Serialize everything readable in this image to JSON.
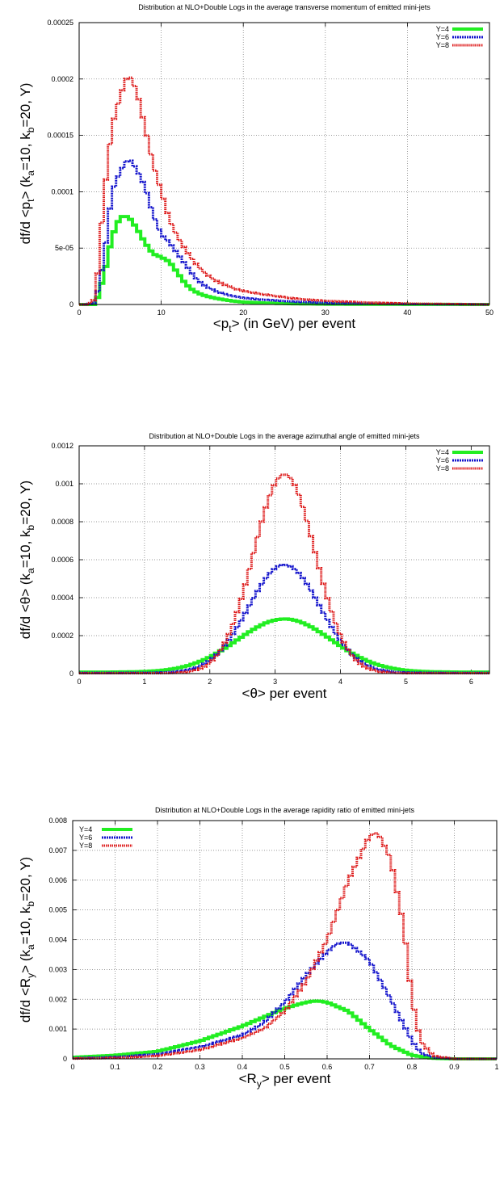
{
  "colors": {
    "Y=4": "#22ee22",
    "Y=6": "#1515cc",
    "Y=8": "#dd1818",
    "grid": "#777777"
  },
  "chart_data": [
    {
      "type": "line",
      "title": "Distribution at NLO+Double Logs in the average transverse momentum of emitted mini-jets",
      "xlabel_pre": "<p",
      "xlabel_sub": "t",
      "xlabel_post": "> (in GeV) per event",
      "ylabel": {
        "a": "df/d <p",
        "b": "t",
        "c": "> (k",
        "d": "a",
        "e": "=10, k",
        "f": "b",
        "g": "=20, Y)"
      },
      "xlim": [
        0,
        50
      ],
      "ylim": [
        0,
        0.00025
      ],
      "xticks": [
        "0",
        "10",
        "20",
        "30",
        "40",
        "50"
      ],
      "yticks": [
        "0",
        "5e-05",
        "0.0001",
        "0.00015",
        "0.0002",
        "0.00025"
      ],
      "grid": true,
      "legend_position": "top-right",
      "step": "histogram",
      "series": [
        {
          "name": "Y=4",
          "x": [
            0,
            1,
            2,
            3,
            4,
            5,
            6,
            7,
            8,
            9,
            10,
            11,
            12,
            13,
            14,
            15,
            16,
            17,
            18,
            19,
            20,
            22,
            24,
            26,
            28,
            30,
            35,
            40,
            45,
            50
          ],
          "values": [
            0,
            0,
            0,
            2.5e-05,
            6e-05,
            7.8e-05,
            7.8e-05,
            6.8e-05,
            5.5e-05,
            4.5e-05,
            4.2e-05,
            3.8e-05,
            2.8e-05,
            1.8e-05,
            1.2e-05,
            8.5e-06,
            6.5e-06,
            5e-06,
            3.8e-06,
            2.8e-06,
            2.2e-06,
            1.5e-06,
            1e-06,
            7e-07,
            5e-07,
            3e-07,
            2e-07,
            1e-07,
            5e-08,
            0
          ]
        },
        {
          "name": "Y=6",
          "x": [
            0,
            1,
            2,
            3,
            4,
            5,
            6,
            7,
            8,
            9,
            10,
            11,
            12,
            13,
            14,
            15,
            16,
            17,
            18,
            19,
            20,
            22,
            24,
            26,
            28,
            30,
            35,
            40,
            45,
            50
          ],
          "values": [
            0,
            0,
            2e-06,
            4e-05,
            0.0001,
            0.000118,
            0.00013,
            0.00012,
            0.000105,
            8e-05,
            6.2e-05,
            5.5e-05,
            4.5e-05,
            3.5e-05,
            2.5e-05,
            1.8e-05,
            1.4e-05,
            1.1e-05,
            8.5e-06,
            7e-06,
            5.8e-06,
            4.5e-06,
            3.5e-06,
            2.5e-06,
            2e-06,
            1.5e-06,
            8e-07,
            4e-07,
            2e-07,
            0
          ]
        },
        {
          "name": "Y=8",
          "x": [
            0,
            1,
            2,
            3,
            4,
            5,
            6,
            7,
            8,
            9,
            10,
            11,
            12,
            13,
            14,
            15,
            16,
            17,
            18,
            19,
            20,
            22,
            24,
            26,
            28,
            30,
            35,
            40,
            45,
            50
          ],
          "values": [
            0,
            0,
            5e-06,
            9.5e-05,
            0.000158,
            0.000185,
            0.000205,
            0.00019,
            0.000158,
            0.000125,
            0.0001,
            7.5e-05,
            6e-05,
            4.8e-05,
            3.8e-05,
            3e-05,
            2.4e-05,
            2e-05,
            1.65e-05,
            1.4e-05,
            1.2e-05,
            9.5e-06,
            7.5e-06,
            5.5e-06,
            4.2e-06,
            3.2e-06,
            1.8e-06,
            8e-07,
            4e-07,
            0
          ]
        }
      ]
    },
    {
      "type": "line",
      "title": "Distribution at NLO+Double Logs in the average azimuthal angle of emitted mini-jets",
      "xlabel_pre": "<θ",
      "xlabel_sub": "",
      "xlabel_post": "> per event",
      "ylabel": {
        "a": "df/d <θ",
        "b": "",
        "c": "> (k",
        "d": "a",
        "e": "=10, k",
        "f": "b",
        "g": "=20, Y)"
      },
      "xlim": [
        0,
        6.28
      ],
      "ylim": [
        0,
        0.0012
      ],
      "xticks": [
        "0",
        "1",
        "2",
        "3",
        "4",
        "5",
        "6"
      ],
      "yticks": [
        "0",
        "0.0002",
        "0.0004",
        "0.0006",
        "0.0008",
        "0.001",
        "0.0012"
      ],
      "grid": true,
      "legend_position": "top-right",
      "step": "histogram",
      "series": [
        {
          "name": "Y=4",
          "gauss": {
            "mean": 3.1416,
            "sigma": 0.72,
            "peak": 0.00028,
            "floor": 8e-06
          }
        },
        {
          "name": "Y=6",
          "gauss": {
            "mean": 3.1416,
            "sigma": 0.55,
            "peak": 0.00057,
            "floor": 4e-06
          }
        },
        {
          "name": "Y=8",
          "gauss": {
            "mean": 3.1416,
            "sigma": 0.47,
            "peak": 0.00105,
            "floor": 2e-06
          }
        }
      ]
    },
    {
      "type": "line",
      "title": "Distribution at NLO+Double Logs in the average rapidity ratio of emitted mini-jets",
      "xlabel_pre": "<R",
      "xlabel_sub": "y",
      "xlabel_post": "> per event",
      "ylabel": {
        "a": "df/d <R",
        "b": "y",
        "c": "> (k",
        "d": "a",
        "e": "=10, k",
        "f": "b",
        "g": "=20, Y)"
      },
      "xlim": [
        0,
        1
      ],
      "ylim": [
        0,
        0.008
      ],
      "xticks": [
        "0",
        "0.1",
        "0.2",
        "0.3",
        "0.4",
        "0.5",
        "0.6",
        "0.7",
        "0.8",
        "0.9",
        "1"
      ],
      "yticks": [
        "0",
        "0.001",
        "0.002",
        "0.003",
        "0.004",
        "0.005",
        "0.006",
        "0.007",
        "0.008"
      ],
      "grid": true,
      "legend_position": "top-left",
      "step": "histogram",
      "series": [
        {
          "name": "Y=4",
          "x": [
            0,
            0.1,
            0.2,
            0.3,
            0.4,
            0.45,
            0.5,
            0.55,
            0.575,
            0.6,
            0.65,
            0.7,
            0.75,
            0.8,
            0.85,
            0.9,
            1.0
          ],
          "values": [
            5e-05,
            0.00012,
            0.00025,
            0.0006,
            0.0011,
            0.0014,
            0.0017,
            0.0019,
            0.00195,
            0.0019,
            0.0016,
            0.001,
            0.00045,
            0.00012,
            2e-05,
            0,
            0
          ]
        },
        {
          "name": "Y=6",
          "x": [
            0,
            0.1,
            0.2,
            0.3,
            0.4,
            0.45,
            0.5,
            0.55,
            0.6,
            0.625,
            0.65,
            0.7,
            0.75,
            0.8,
            0.82,
            0.85,
            0.9,
            1.0
          ],
          "values": [
            2e-05,
            6e-05,
            0.00016,
            0.0004,
            0.0008,
            0.0012,
            0.0019,
            0.0028,
            0.0036,
            0.0039,
            0.0039,
            0.0033,
            0.002,
            0.0006,
            0.0002,
            5e-05,
            0,
            0
          ]
        },
        {
          "name": "Y=8",
          "x": [
            0,
            0.1,
            0.2,
            0.3,
            0.4,
            0.45,
            0.5,
            0.55,
            0.6,
            0.65,
            0.7,
            0.72,
            0.75,
            0.78,
            0.8,
            0.82,
            0.85,
            0.9,
            1.0
          ],
          "values": [
            1e-05,
            3e-05,
            0.0001,
            0.0003,
            0.0007,
            0.001,
            0.0016,
            0.0026,
            0.004,
            0.006,
            0.0075,
            0.0076,
            0.0067,
            0.0045,
            0.002,
            0.0006,
            0.0001,
            0,
            0
          ]
        }
      ]
    }
  ]
}
